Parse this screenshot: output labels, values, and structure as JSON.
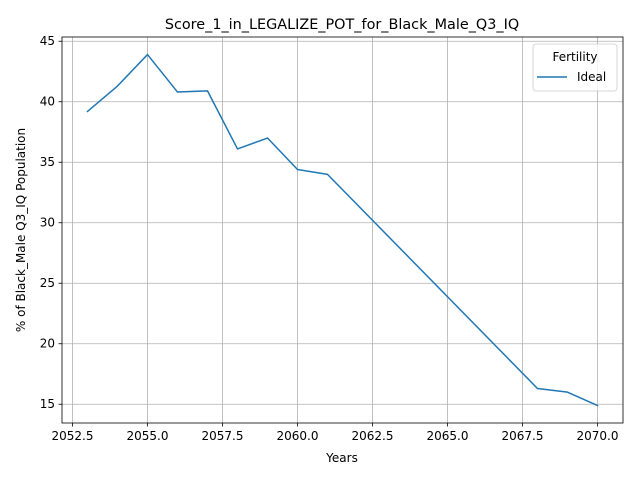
{
  "chart_data": {
    "type": "line",
    "title": "Score_1_in_LEGALIZE_POT_for_Black_Male_Q3_IQ",
    "xlabel": "Years",
    "ylabel": "% of Black_Male Q3_IQ Population",
    "xlim": [
      2052.15,
      2070.85
    ],
    "ylim": [
      13.45,
      45.35
    ],
    "xticks": [
      2052.5,
      2055.0,
      2057.5,
      2060.0,
      2062.5,
      2065.0,
      2067.5,
      2070.0
    ],
    "xtick_labels": [
      "2052.5",
      "2055.0",
      "2057.5",
      "2060.0",
      "2062.5",
      "2065.0",
      "2067.5",
      "2070.0"
    ],
    "yticks": [
      15,
      20,
      25,
      30,
      35,
      40,
      45
    ],
    "ytick_labels": [
      "15",
      "20",
      "25",
      "30",
      "35",
      "40",
      "45"
    ],
    "grid": true,
    "legend": {
      "title": "Fertility",
      "placement": "top-right"
    },
    "series": [
      {
        "name": "Ideal",
        "color": "#1f77b4",
        "x": [
          2053,
          2054,
          2055,
          2056,
          2057,
          2058,
          2059,
          2060,
          2061,
          2068,
          2069,
          2070
        ],
        "y": [
          39.2,
          41.3,
          43.9,
          40.8,
          40.9,
          36.1,
          37.0,
          34.4,
          34.0,
          16.3,
          16.0,
          14.9
        ]
      }
    ]
  }
}
